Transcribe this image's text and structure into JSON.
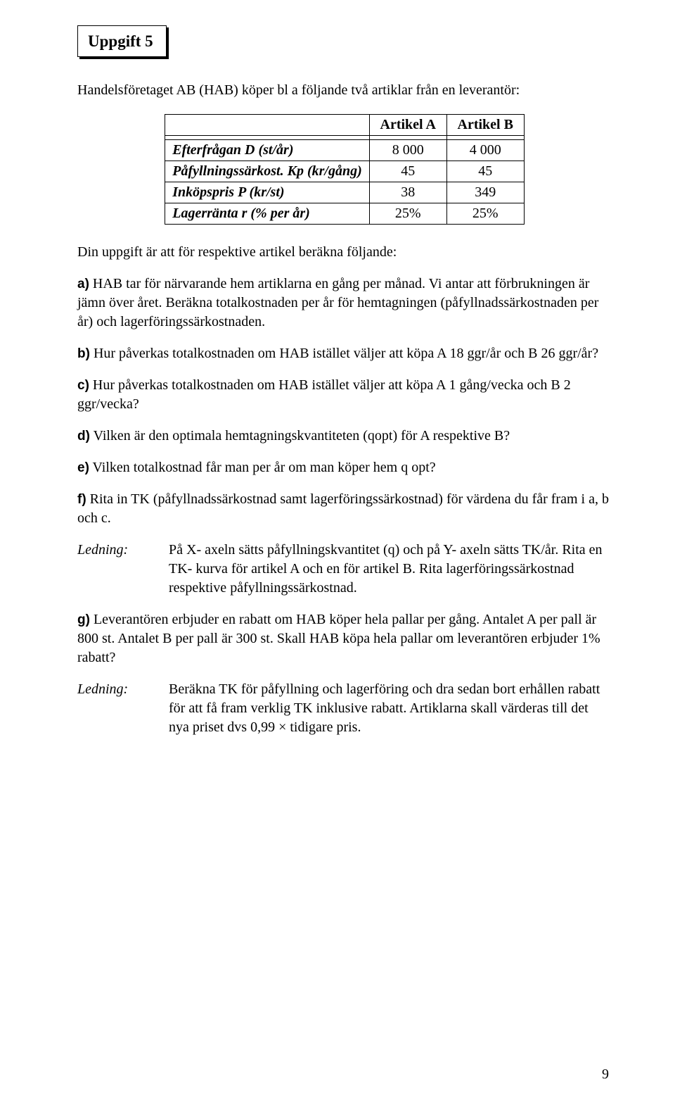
{
  "title": "Uppgift 5",
  "intro": "Handelsföretaget AB (HAB) köper bl a följande två artiklar från en leverantör:",
  "table": {
    "headers": {
      "a": "Artikel A",
      "b": "Artikel B"
    },
    "rows": [
      {
        "label": "Efterfrågan D (st/år)",
        "a": "8 000",
        "b": "4 000"
      },
      {
        "label": "Påfyllningssärkost. Kp (kr/gång)",
        "a": "45",
        "b": "45"
      },
      {
        "label": "Inköpspris P (kr/st)",
        "a": "38",
        "b": "349"
      },
      {
        "label": "Lagerränta r (% per år)",
        "a": "25%",
        "b": "25%"
      }
    ]
  },
  "follow": "Din uppgift är att för respektive artikel beräkna följande:",
  "items": {
    "a_text": " HAB tar för närvarande hem artiklarna en gång per månad. Vi antar att förbrukningen är jämn över året. Beräkna totalkostnaden per år för hemtagningen (påfyllnadssärkostnaden per år) och lagerföringssärkostnaden.",
    "b_text": " Hur påverkas totalkostnaden om HAB istället väljer att köpa A 18 ggr/år och B 26 ggr/år?",
    "c_text": " Hur påverkas totalkostnaden om HAB istället väljer att köpa A 1 gång/vecka och B 2 ggr/vecka?",
    "d_text": " Vilken är den optimala hemtagningskvantiteten (qopt) för A respektive B?",
    "e_text": " Vilken totalkostnad får man per år om man köper hem q opt?",
    "f_text": " Rita in TK (påfyllnadssärkostnad samt lagerföringssärkostnad) för värdena du får fram i a, b och c.",
    "ledning1": "På X- axeln sätts påfyllningskvantitet (q) och på Y- axeln sätts TK/år. Rita en TK- kurva för artikel A och en för artikel B. Rita lagerföringssärkostnad respektive påfyllningssärkostnad.",
    "g_text": " Leverantören erbjuder en rabatt om HAB köper hela pallar per gång. Antalet A per pall är 800 st. Antalet B per pall är 300 st. Skall HAB köpa hela pallar om leverantören erbjuder 1% rabatt?",
    "ledning2": "Beräkna TK för påfyllning och lagerföring och dra sedan bort erhållen rabatt för att få fram verklig TK inklusive rabatt. Artiklarna skall värderas till det nya priset dvs 0,99 × tidigare pris."
  },
  "labels": {
    "a": "a)",
    "b": "b)",
    "c": "c)",
    "d": "d)",
    "e": "e)",
    "f": "f)",
    "g": "g)",
    "ledning": "Ledning:"
  },
  "page_number": "9",
  "colors": {
    "text": "#000000",
    "background": "#ffffff",
    "border": "#000000"
  },
  "typography": {
    "body_font": "Times New Roman",
    "body_size_pt": 15,
    "label_font": "Arial",
    "title_size_pt": 17,
    "title_weight": "bold"
  }
}
